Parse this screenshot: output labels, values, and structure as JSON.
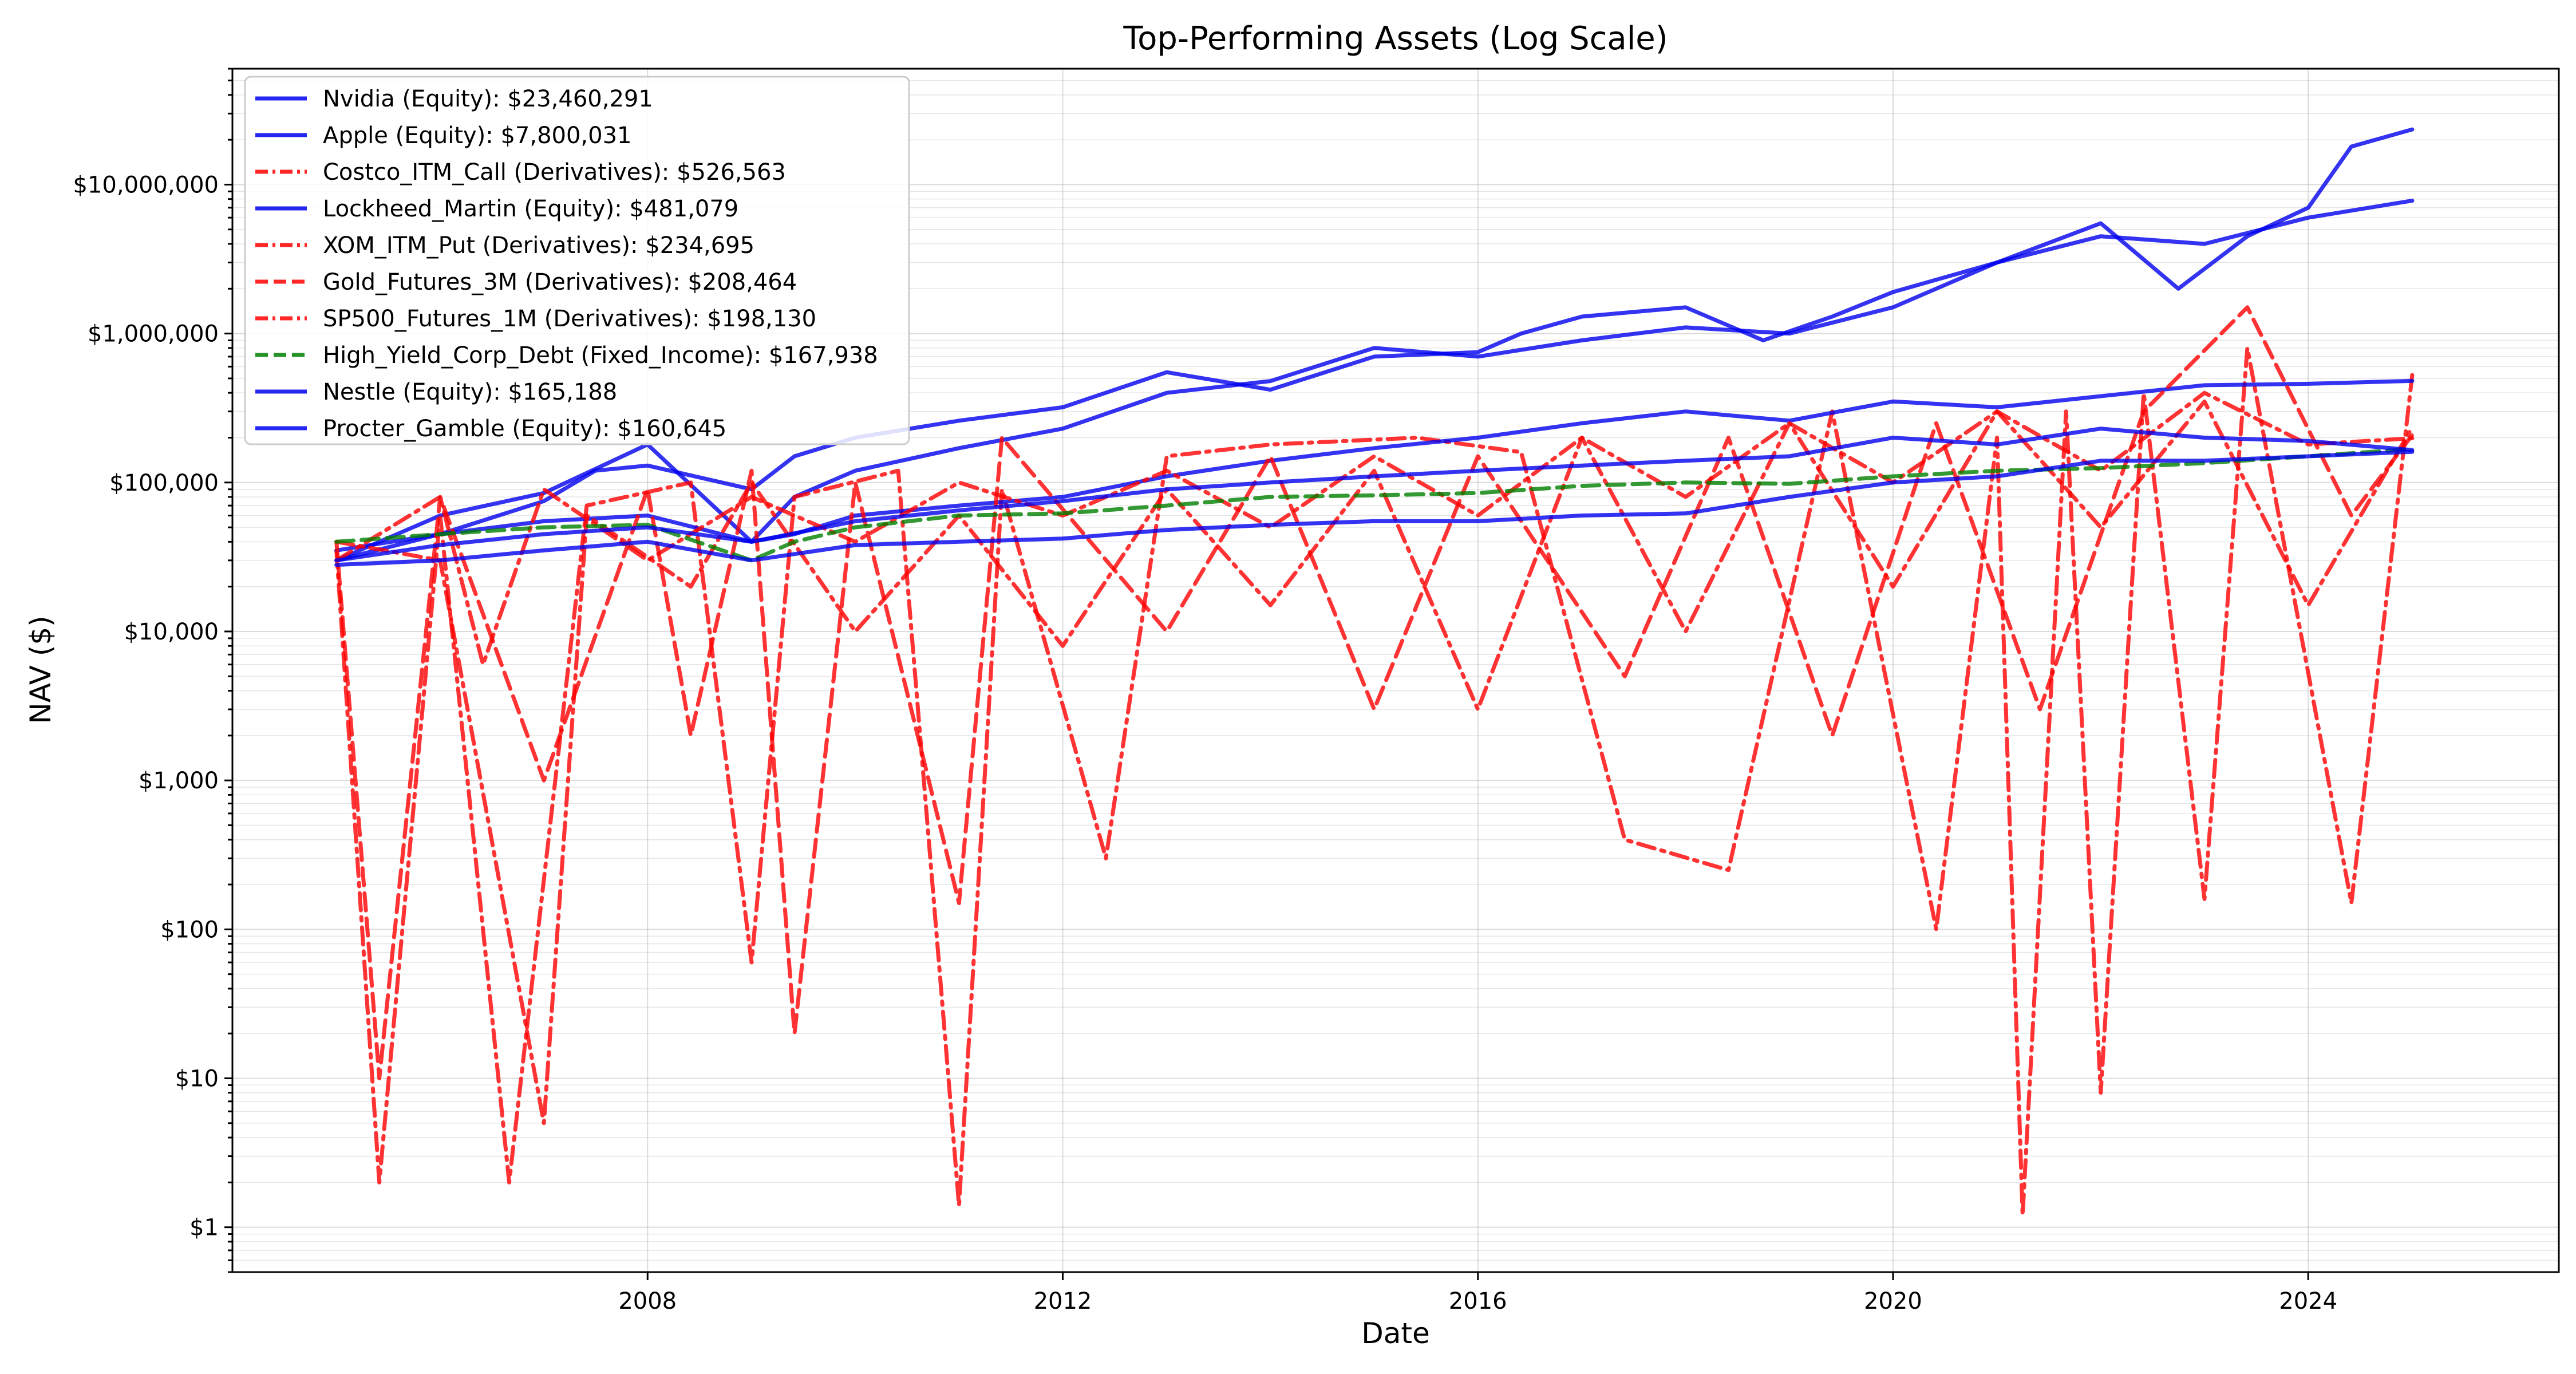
{
  "chart_data": {
    "type": "line",
    "title": "Top-Performing Assets (Log Scale)",
    "xlabel": "Date",
    "ylabel": "NAV ($)",
    "y_scale": "log",
    "xlim": [
      "2004-01-01",
      "2026-06-01"
    ],
    "ylim": [
      0.5,
      60000000
    ],
    "x_ticks": [
      {
        "date": "2008-01-01",
        "label": "2008"
      },
      {
        "date": "2012-01-01",
        "label": "2012"
      },
      {
        "date": "2016-01-01",
        "label": "2016"
      },
      {
        "date": "2020-01-01",
        "label": "2020"
      },
      {
        "date": "2024-01-01",
        "label": "2024"
      }
    ],
    "y_ticks": [
      {
        "value": 1,
        "label": "$1"
      },
      {
        "value": 10,
        "label": "$10"
      },
      {
        "value": 100,
        "label": "$100"
      },
      {
        "value": 1000,
        "label": "$1,000"
      },
      {
        "value": 10000,
        "label": "$10,000"
      },
      {
        "value": 100000,
        "label": "$100,000"
      },
      {
        "value": 1000000,
        "label": "$1,000,000"
      },
      {
        "value": 10000000,
        "label": "$10,000,000"
      }
    ],
    "grid": true,
    "legend_position": "top-left",
    "series": [
      {
        "name": "Nvidia (Equity): $23,460,291",
        "color": "#0000ee",
        "dash": "solid",
        "points": [
          [
            "2005-01-01",
            30000
          ],
          [
            "2006-01-01",
            45000
          ],
          [
            "2007-01-01",
            75000
          ],
          [
            "2007-07-01",
            120000
          ],
          [
            "2008-01-01",
            130000
          ],
          [
            "2009-01-01",
            90000
          ],
          [
            "2009-06-01",
            150000
          ],
          [
            "2010-01-01",
            200000
          ],
          [
            "2011-01-01",
            260000
          ],
          [
            "2012-01-01",
            320000
          ],
          [
            "2013-01-01",
            550000
          ],
          [
            "2014-01-01",
            420000
          ],
          [
            "2015-01-01",
            700000
          ],
          [
            "2016-01-01",
            750000
          ],
          [
            "2016-06-01",
            1000000
          ],
          [
            "2017-01-01",
            1300000
          ],
          [
            "2018-01-01",
            1500000
          ],
          [
            "2018-10-01",
            900000
          ],
          [
            "2019-06-01",
            1300000
          ],
          [
            "2020-01-01",
            1900000
          ],
          [
            "2021-01-01",
            3000000
          ],
          [
            "2022-01-01",
            5500000
          ],
          [
            "2022-10-01",
            2000000
          ],
          [
            "2023-06-01",
            4500000
          ],
          [
            "2024-01-01",
            7000000
          ],
          [
            "2024-06-01",
            18000000
          ],
          [
            "2025-01-01",
            23460291
          ]
        ]
      },
      {
        "name": "Apple (Equity): $7,800,031",
        "color": "#0000ee",
        "dash": "solid",
        "points": [
          [
            "2005-01-01",
            30000
          ],
          [
            "2006-01-01",
            60000
          ],
          [
            "2007-01-01",
            85000
          ],
          [
            "2008-01-01",
            180000
          ],
          [
            "2009-01-01",
            40000
          ],
          [
            "2009-06-01",
            80000
          ],
          [
            "2010-01-01",
            120000
          ],
          [
            "2011-01-01",
            170000
          ],
          [
            "2012-01-01",
            230000
          ],
          [
            "2013-01-01",
            400000
          ],
          [
            "2014-01-01",
            480000
          ],
          [
            "2015-01-01",
            800000
          ],
          [
            "2016-01-01",
            700000
          ],
          [
            "2017-01-01",
            900000
          ],
          [
            "2018-01-01",
            1100000
          ],
          [
            "2019-01-01",
            1000000
          ],
          [
            "2020-01-01",
            1500000
          ],
          [
            "2021-01-01",
            3000000
          ],
          [
            "2022-01-01",
            4500000
          ],
          [
            "2023-01-01",
            4000000
          ],
          [
            "2024-01-01",
            6000000
          ],
          [
            "2025-01-01",
            7800031
          ]
        ]
      },
      {
        "name": "Costco_ITM_Call (Derivatives): $526,563",
        "color": "#ff0000",
        "dash": "dashdot",
        "points": [
          [
            "2005-01-01",
            35000
          ],
          [
            "2005-06-01",
            2
          ],
          [
            "2006-01-01",
            60000
          ],
          [
            "2006-09-01",
            2
          ],
          [
            "2007-06-01",
            70000
          ],
          [
            "2008-06-01",
            100000
          ],
          [
            "2009-01-01",
            60
          ],
          [
            "2009-06-01",
            80000
          ],
          [
            "2010-06-01",
            120000
          ],
          [
            "2011-01-01",
            1.4
          ],
          [
            "2011-06-01",
            90000
          ],
          [
            "2012-06-01",
            300
          ],
          [
            "2013-01-01",
            150000
          ],
          [
            "2014-01-01",
            180000
          ],
          [
            "2015-06-01",
            200000
          ],
          [
            "2016-06-01",
            160000
          ],
          [
            "2017-06-01",
            400
          ],
          [
            "2018-06-01",
            250
          ],
          [
            "2019-06-01",
            300000
          ],
          [
            "2020-06-01",
            100
          ],
          [
            "2021-01-01",
            200000
          ],
          [
            "2021-04-01",
            1.2
          ],
          [
            "2021-09-01",
            300000
          ],
          [
            "2022-01-01",
            8
          ],
          [
            "2022-06-01",
            400000
          ],
          [
            "2023-01-01",
            160
          ],
          [
            "2023-06-01",
            800000
          ],
          [
            "2024-06-01",
            150
          ],
          [
            "2025-01-01",
            526563
          ]
        ]
      },
      {
        "name": "Lockheed_Martin (Equity): $481,079",
        "color": "#0000ee",
        "dash": "solid",
        "points": [
          [
            "2005-01-01",
            35000
          ],
          [
            "2006-01-01",
            45000
          ],
          [
            "2007-01-01",
            55000
          ],
          [
            "2008-01-01",
            60000
          ],
          [
            "2009-01-01",
            40000
          ],
          [
            "2009-06-01",
            45000
          ],
          [
            "2010-01-01",
            60000
          ],
          [
            "2011-01-01",
            70000
          ],
          [
            "2012-01-01",
            80000
          ],
          [
            "2013-01-01",
            110000
          ],
          [
            "2014-01-01",
            140000
          ],
          [
            "2015-01-01",
            170000
          ],
          [
            "2016-01-01",
            200000
          ],
          [
            "2017-01-01",
            250000
          ],
          [
            "2018-01-01",
            300000
          ],
          [
            "2019-01-01",
            260000
          ],
          [
            "2020-01-01",
            350000
          ],
          [
            "2021-01-01",
            320000
          ],
          [
            "2022-01-01",
            380000
          ],
          [
            "2023-01-01",
            450000
          ],
          [
            "2024-01-01",
            460000
          ],
          [
            "2025-01-01",
            481079
          ]
        ]
      },
      {
        "name": "XOM_ITM_Put (Derivatives): $234,695",
        "color": "#ff0000",
        "dash": "dashdot",
        "points": [
          [
            "2005-01-01",
            40000
          ],
          [
            "2006-01-01",
            30000
          ],
          [
            "2007-01-01",
            5
          ],
          [
            "2007-06-01",
            60000
          ],
          [
            "2008-06-01",
            20000
          ],
          [
            "2009-01-01",
            100000
          ],
          [
            "2010-01-01",
            10000
          ],
          [
            "2011-01-01",
            60000
          ],
          [
            "2012-01-01",
            8000
          ],
          [
            "2013-01-01",
            90000
          ],
          [
            "2014-01-01",
            15000
          ],
          [
            "2015-01-01",
            120000
          ],
          [
            "2016-01-01",
            3000
          ],
          [
            "2017-01-01",
            200000
          ],
          [
            "2018-01-01",
            10000
          ],
          [
            "2019-01-01",
            250000
          ],
          [
            "2020-01-01",
            20000
          ],
          [
            "2021-01-01",
            300000
          ],
          [
            "2022-01-01",
            50000
          ],
          [
            "2023-01-01",
            350000
          ],
          [
            "2024-01-01",
            15000
          ],
          [
            "2025-01-01",
            234695
          ]
        ]
      },
      {
        "name": "Gold_Futures_3M (Derivatives): $208,464",
        "color": "#ff0000",
        "dash": "dashed",
        "points": [
          [
            "2005-01-01",
            40000
          ],
          [
            "2005-06-01",
            10
          ],
          [
            "2006-01-01",
            80000
          ],
          [
            "2007-01-01",
            1000
          ],
          [
            "2008-01-01",
            90000
          ],
          [
            "2008-06-01",
            2000
          ],
          [
            "2009-01-01",
            120000
          ],
          [
            "2009-06-01",
            20
          ],
          [
            "2010-01-01",
            100000
          ],
          [
            "2011-01-01",
            150
          ],
          [
            "2011-06-01",
            200000
          ],
          [
            "2013-01-01",
            10000
          ],
          [
            "2014-01-01",
            150000
          ],
          [
            "2015-01-01",
            3000
          ],
          [
            "2016-01-01",
            150000
          ],
          [
            "2017-06-01",
            5000
          ],
          [
            "2018-06-01",
            200000
          ],
          [
            "2019-06-01",
            2000
          ],
          [
            "2020-06-01",
            250000
          ],
          [
            "2021-06-01",
            3000
          ],
          [
            "2022-06-01",
            300000
          ],
          [
            "2023-06-01",
            1500000
          ],
          [
            "2024-06-01",
            60000
          ],
          [
            "2025-01-01",
            208464
          ]
        ]
      },
      {
        "name": "SP500_Futures_1M (Derivatives): $198,130",
        "color": "#ff0000",
        "dash": "dashdot",
        "points": [
          [
            "2005-01-01",
            30000
          ],
          [
            "2006-01-01",
            80000
          ],
          [
            "2006-06-01",
            6000
          ],
          [
            "2007-01-01",
            90000
          ],
          [
            "2008-01-01",
            30000
          ],
          [
            "2009-01-01",
            80000
          ],
          [
            "2010-01-01",
            40000
          ],
          [
            "2011-01-01",
            100000
          ],
          [
            "2012-01-01",
            60000
          ],
          [
            "2013-01-01",
            120000
          ],
          [
            "2014-01-01",
            50000
          ],
          [
            "2015-01-01",
            150000
          ],
          [
            "2016-01-01",
            60000
          ],
          [
            "2017-01-01",
            200000
          ],
          [
            "2018-01-01",
            80000
          ],
          [
            "2019-01-01",
            250000
          ],
          [
            "2020-01-01",
            100000
          ],
          [
            "2021-01-01",
            300000
          ],
          [
            "2022-01-01",
            120000
          ],
          [
            "2023-01-01",
            400000
          ],
          [
            "2024-01-01",
            180000
          ],
          [
            "2025-01-01",
            198130
          ]
        ]
      },
      {
        "name": "High_Yield_Corp_Debt (Fixed_Income): $167,938",
        "color": "#008000",
        "dash": "dashed",
        "points": [
          [
            "2005-01-01",
            40000
          ],
          [
            "2006-01-01",
            45000
          ],
          [
            "2007-01-01",
            50000
          ],
          [
            "2008-01-01",
            52000
          ],
          [
            "2009-01-01",
            30000
          ],
          [
            "2009-06-01",
            40000
          ],
          [
            "2010-01-01",
            50000
          ],
          [
            "2011-01-01",
            60000
          ],
          [
            "2012-01-01",
            62000
          ],
          [
            "2013-01-01",
            70000
          ],
          [
            "2014-01-01",
            80000
          ],
          [
            "2015-01-01",
            82000
          ],
          [
            "2016-01-01",
            85000
          ],
          [
            "2017-01-01",
            95000
          ],
          [
            "2018-01-01",
            100000
          ],
          [
            "2019-01-01",
            98000
          ],
          [
            "2020-01-01",
            110000
          ],
          [
            "2021-01-01",
            120000
          ],
          [
            "2022-01-01",
            125000
          ],
          [
            "2023-01-01",
            135000
          ],
          [
            "2024-01-01",
            150000
          ],
          [
            "2025-01-01",
            167938
          ]
        ]
      },
      {
        "name": "Nestle (Equity): $165,188",
        "color": "#0000ee",
        "dash": "solid",
        "points": [
          [
            "2005-01-01",
            30000
          ],
          [
            "2006-01-01",
            38000
          ],
          [
            "2007-01-01",
            45000
          ],
          [
            "2008-01-01",
            50000
          ],
          [
            "2009-01-01",
            40000
          ],
          [
            "2010-01-01",
            55000
          ],
          [
            "2011-01-01",
            65000
          ],
          [
            "2012-01-01",
            75000
          ],
          [
            "2013-01-01",
            90000
          ],
          [
            "2014-01-01",
            100000
          ],
          [
            "2015-01-01",
            110000
          ],
          [
            "2016-01-01",
            120000
          ],
          [
            "2017-01-01",
            130000
          ],
          [
            "2018-01-01",
            140000
          ],
          [
            "2019-01-01",
            150000
          ],
          [
            "2020-01-01",
            200000
          ],
          [
            "2021-01-01",
            180000
          ],
          [
            "2022-01-01",
            230000
          ],
          [
            "2023-01-01",
            200000
          ],
          [
            "2024-01-01",
            190000
          ],
          [
            "2025-01-01",
            165188
          ]
        ]
      },
      {
        "name": "Procter_Gamble (Equity): $160,645",
        "color": "#0000ee",
        "dash": "solid",
        "points": [
          [
            "2005-01-01",
            28000
          ],
          [
            "2006-01-01",
            30000
          ],
          [
            "2007-01-01",
            35000
          ],
          [
            "2008-01-01",
            40000
          ],
          [
            "2009-01-01",
            30000
          ],
          [
            "2010-01-01",
            38000
          ],
          [
            "2011-01-01",
            40000
          ],
          [
            "2012-01-01",
            42000
          ],
          [
            "2013-01-01",
            48000
          ],
          [
            "2014-01-01",
            52000
          ],
          [
            "2015-01-01",
            55000
          ],
          [
            "2016-01-01",
            55000
          ],
          [
            "2017-01-01",
            60000
          ],
          [
            "2018-01-01",
            62000
          ],
          [
            "2019-01-01",
            80000
          ],
          [
            "2020-01-01",
            100000
          ],
          [
            "2021-01-01",
            110000
          ],
          [
            "2022-01-01",
            140000
          ],
          [
            "2023-01-01",
            140000
          ],
          [
            "2024-01-01",
            150000
          ],
          [
            "2025-01-01",
            160645
          ]
        ]
      }
    ]
  }
}
